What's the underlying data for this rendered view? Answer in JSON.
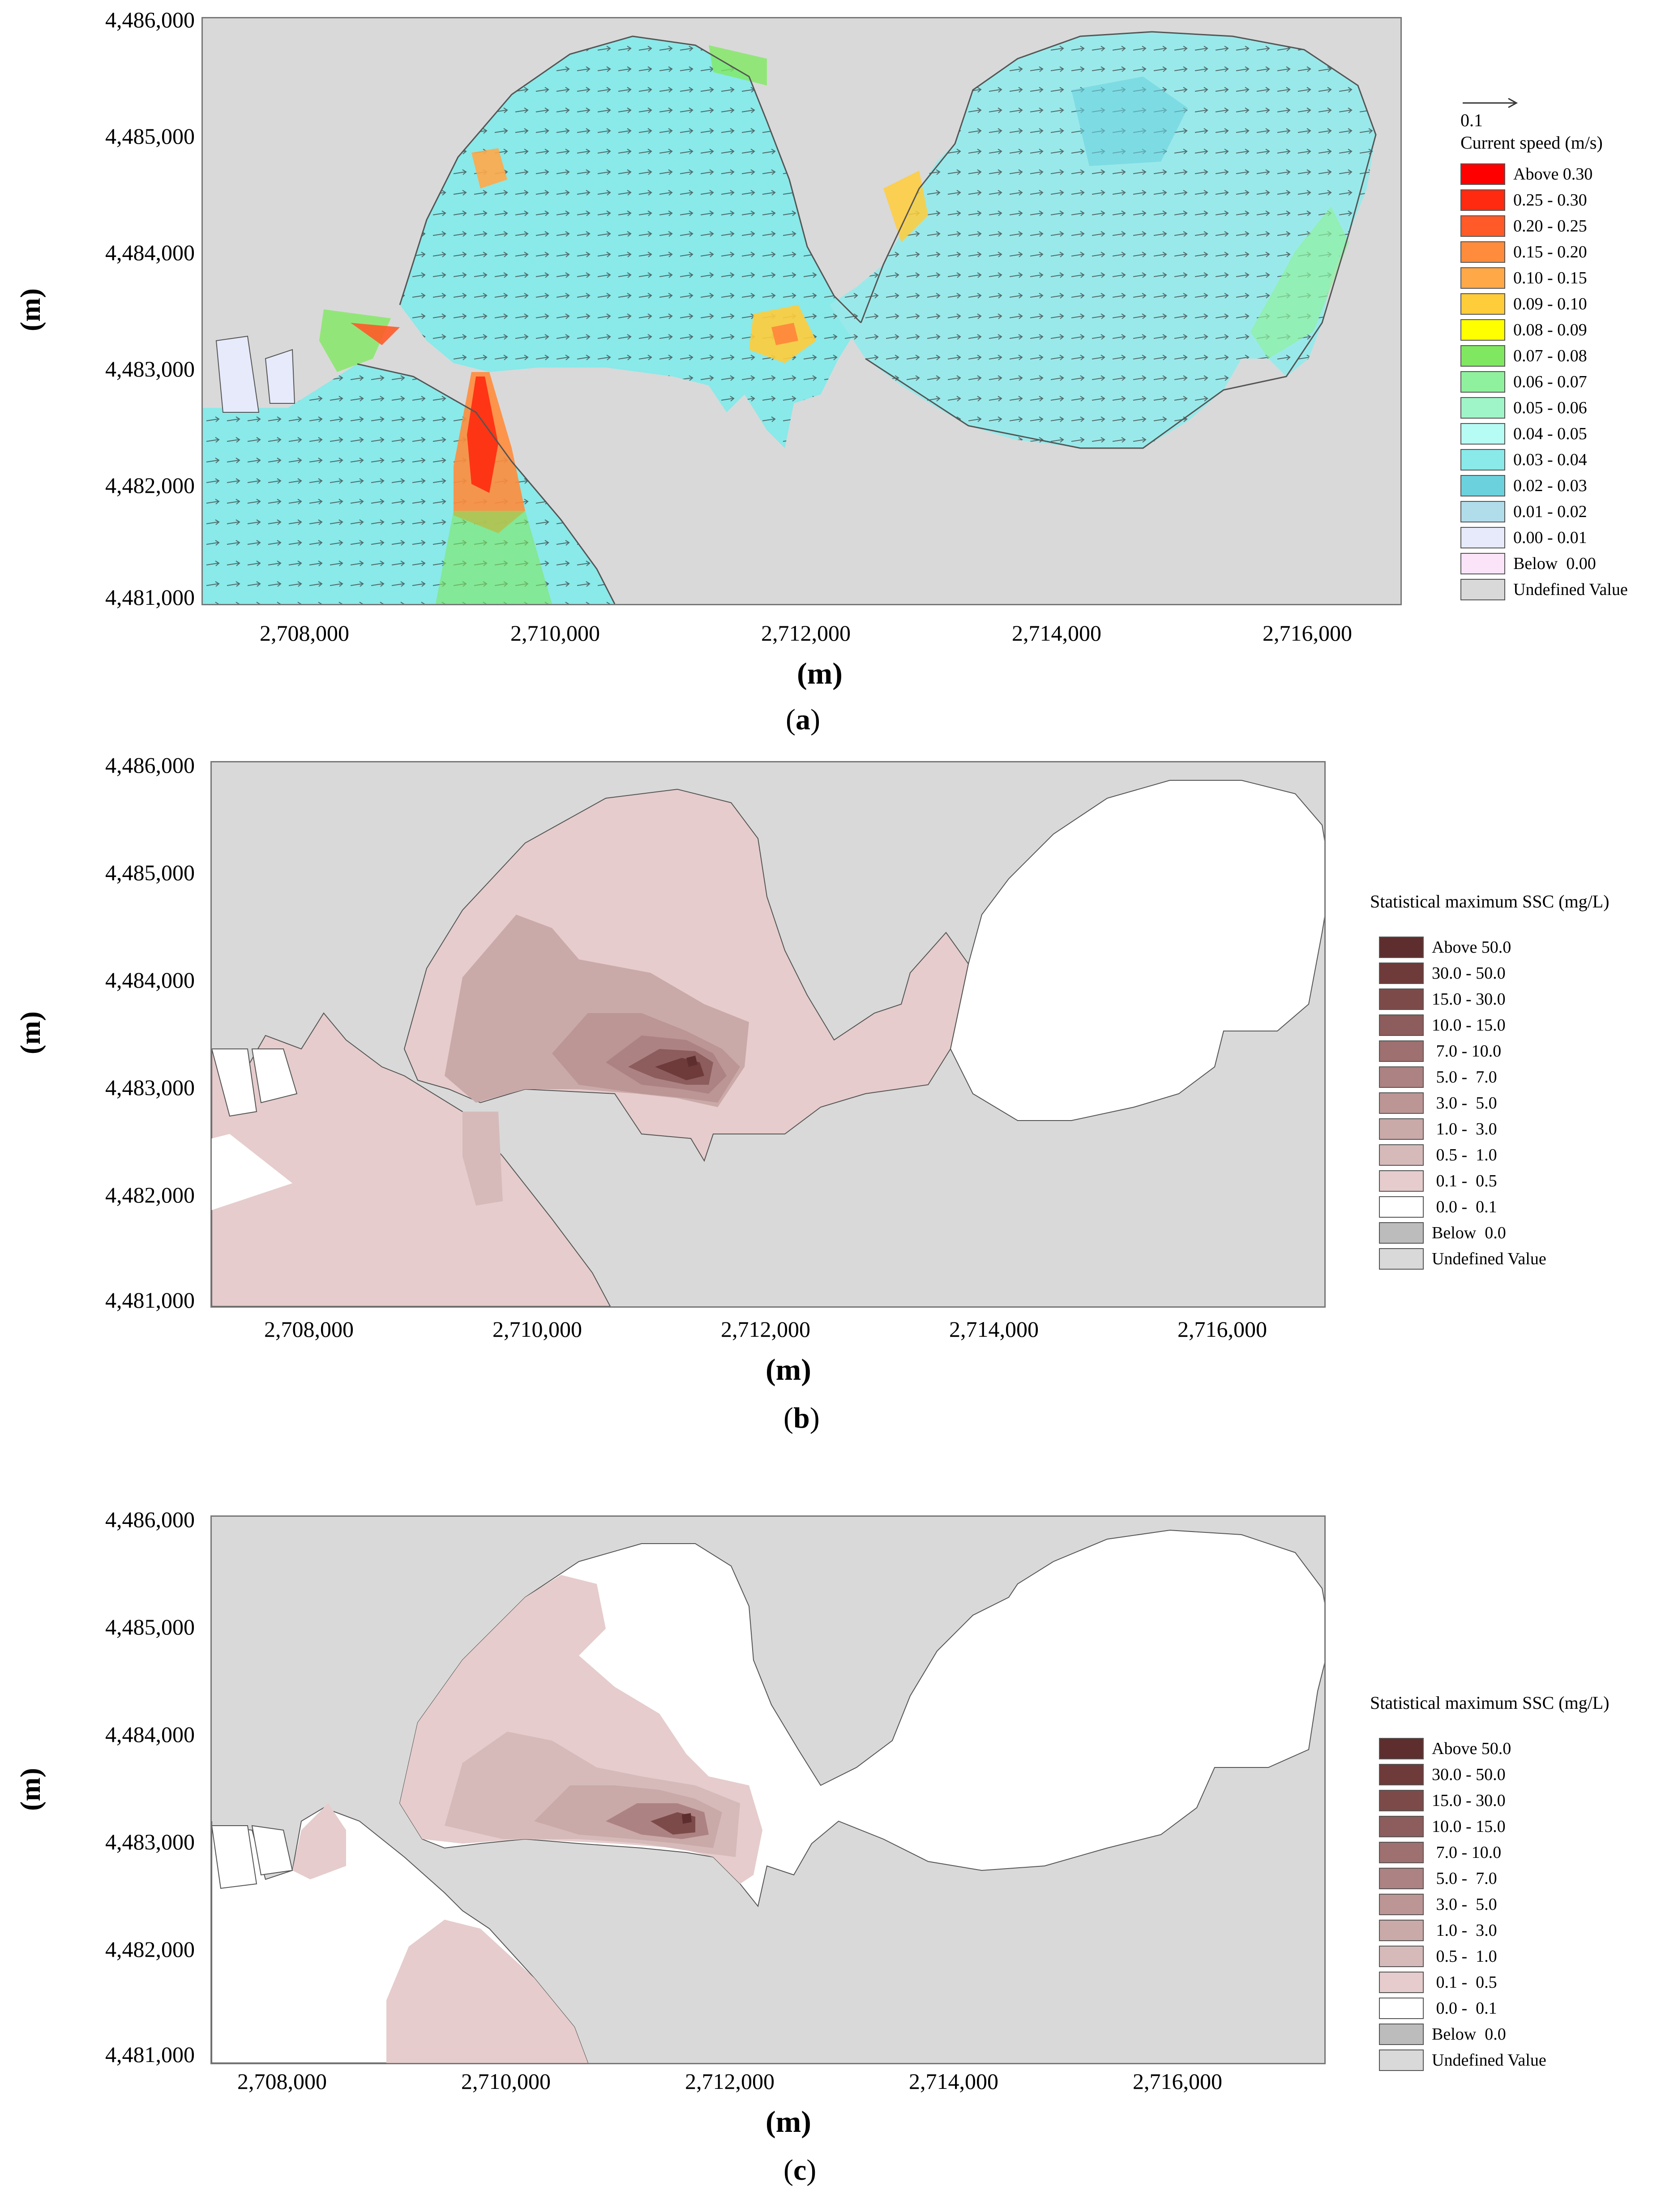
{
  "panels": [
    {
      "id": "a",
      "caption_letter": "a",
      "xlabel": "(m)",
      "ylabel": "(m)",
      "yticks": [
        "4,486,000",
        "4,485,000",
        "4,484,000",
        "4,483,000",
        "4,482,000",
        "4,481,000"
      ],
      "xticks": [
        "2,708,000",
        "2,710,000",
        "2,712,000",
        "2,714,000",
        "2,716,000"
      ],
      "legend": {
        "reference_arrow_label": "0.1",
        "title": "Current speed (m/s)",
        "items": [
          {
            "label": "Above 0.30",
            "color": "#ff0000"
          },
          {
            "label": "0.25 - 0.30",
            "color": "#ff2a10"
          },
          {
            "label": "0.20 - 0.25",
            "color": "#ff5a28"
          },
          {
            "label": "0.15 - 0.20",
            "color": "#ff8c3c"
          },
          {
            "label": "0.10 - 0.15",
            "color": "#ffa848"
          },
          {
            "label": "0.09 - 0.10",
            "color": "#ffcc3a"
          },
          {
            "label": "0.08 - 0.09",
            "color": "#ffff00"
          },
          {
            "label": "0.07 - 0.08",
            "color": "#7fe860"
          },
          {
            "label": "0.06 - 0.07",
            "color": "#8ff19e"
          },
          {
            "label": "0.05 - 0.06",
            "color": "#9ff5c8"
          },
          {
            "label": "0.04 - 0.05",
            "color": "#b6fbf4"
          },
          {
            "label": "0.03 - 0.04",
            "color": "#8ae9e9"
          },
          {
            "label": "0.02 - 0.03",
            "color": "#6bd2dd"
          },
          {
            "label": "0.01 - 0.02",
            "color": "#b1ddea"
          },
          {
            "label": "0.00 - 0.01",
            "color": "#e6eafb"
          },
          {
            "label": "Below  0.00",
            "color": "#fce4f8"
          },
          {
            "label": "Undefined Value",
            "color": "#d9d9d9"
          }
        ]
      }
    },
    {
      "id": "b",
      "caption_letter": "b",
      "xlabel": "(m)",
      "ylabel": "(m)",
      "yticks": [
        "4,486,000",
        "4,485,000",
        "4,484,000",
        "4,483,000",
        "4,482,000",
        "4,481,000"
      ],
      "xticks": [
        "2,708,000",
        "2,710,000",
        "2,712,000",
        "2,714,000",
        "2,716,000"
      ],
      "legend": {
        "title": "Statistical maximum SSC (mg/L)",
        "items": [
          {
            "label": "Above 50.0",
            "color": "#5e2e2e"
          },
          {
            "label": "30.0 - 50.0",
            "color": "#6e3a3a"
          },
          {
            "label": "15.0 - 30.0",
            "color": "#7d4a4a"
          },
          {
            "label": "10.0 - 15.0",
            "color": "#8d5c5c"
          },
          {
            "label": " 7.0 - 10.0",
            "color": "#9e7070"
          },
          {
            "label": " 5.0 -  7.0",
            "color": "#ad8282"
          },
          {
            "label": " 3.0 -  5.0",
            "color": "#bc9595"
          },
          {
            "label": " 1.0 -  3.0",
            "color": "#caa9a9"
          },
          {
            "label": " 0.5 -  1.0",
            "color": "#d6baba"
          },
          {
            "label": " 0.1 -  0.5",
            "color": "#e6cccc"
          },
          {
            "label": " 0.0 -  0.1",
            "color": "#ffffff"
          },
          {
            "label": "Below  0.0",
            "color": "#bcbcbc"
          },
          {
            "label": "Undefined Value",
            "color": "#d9d9d9"
          }
        ]
      }
    },
    {
      "id": "c",
      "caption_letter": "c",
      "xlabel": "(m)",
      "ylabel": "(m)",
      "yticks": [
        "4,486,000",
        "4,485,000",
        "4,484,000",
        "4,483,000",
        "4,482,000",
        "4,481,000"
      ],
      "xticks": [
        "2,708,000",
        "2,710,000",
        "2,712,000",
        "2,714,000",
        "2,716,000"
      ],
      "legend": {
        "title": "Statistical maximum SSC (mg/L)",
        "items": [
          {
            "label": "Above 50.0",
            "color": "#5e2e2e"
          },
          {
            "label": "30.0 - 50.0",
            "color": "#6e3a3a"
          },
          {
            "label": "15.0 - 30.0",
            "color": "#7d4a4a"
          },
          {
            "label": "10.0 - 15.0",
            "color": "#8d5c5c"
          },
          {
            "label": " 7.0 - 10.0",
            "color": "#9e7070"
          },
          {
            "label": " 5.0 -  7.0",
            "color": "#ad8282"
          },
          {
            "label": " 3.0 -  5.0",
            "color": "#bc9595"
          },
          {
            "label": " 1.0 -  3.0",
            "color": "#caa9a9"
          },
          {
            "label": " 0.5 -  1.0",
            "color": "#d6baba"
          },
          {
            "label": " 0.1 -  0.5",
            "color": "#e6cccc"
          },
          {
            "label": " 0.0 -  0.1",
            "color": "#ffffff"
          },
          {
            "label": "Below  0.0",
            "color": "#bcbcbc"
          },
          {
            "label": "Undefined Value",
            "color": "#d9d9d9"
          }
        ]
      }
    }
  ]
}
